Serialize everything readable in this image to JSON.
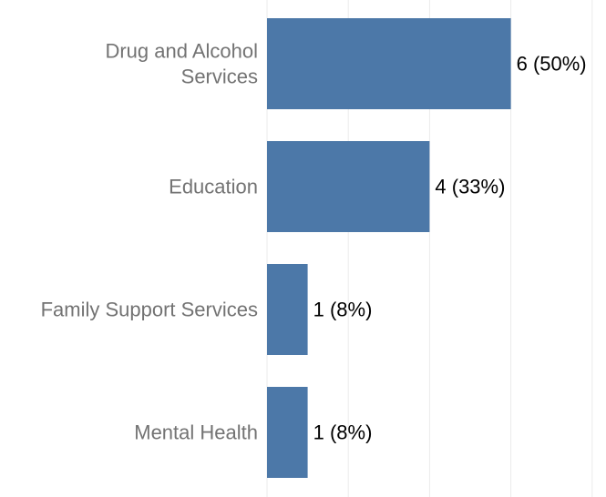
{
  "chart_data": {
    "type": "bar",
    "orientation": "horizontal",
    "categories": [
      [
        "Drug and Alcohol",
        "Services"
      ],
      [
        "Education"
      ],
      [
        "Family Support Services"
      ],
      [
        "Mental Health"
      ]
    ],
    "values": [
      6,
      4,
      1,
      1
    ],
    "data_labels": [
      "6  (50%)",
      "4  (33%)",
      "1  (8%)",
      "1  (8%)"
    ],
    "xlim": [
      0,
      8
    ],
    "grid": "vertical",
    "bar_color": "#4c78a8",
    "title": "",
    "xlabel": "",
    "ylabel": ""
  }
}
